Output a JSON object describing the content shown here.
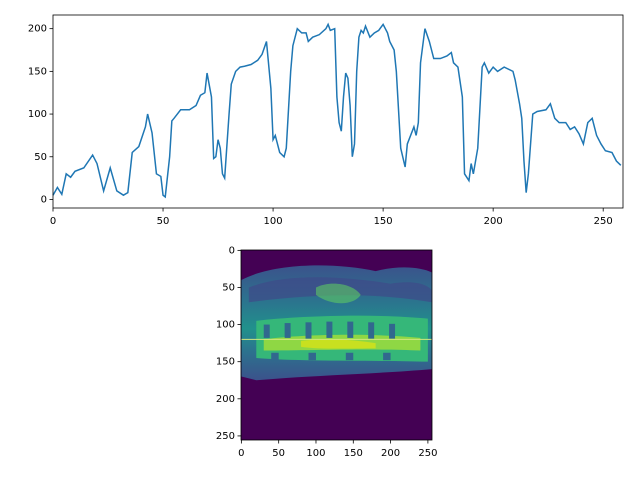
{
  "chart_data": [
    {
      "type": "line",
      "color": "#1f77b4",
      "x": [
        0,
        2,
        4,
        6,
        8,
        10,
        14,
        18,
        20,
        23,
        26,
        29,
        32,
        34,
        36,
        39,
        42,
        43,
        45,
        47,
        49,
        50,
        51,
        53,
        54,
        55,
        58,
        62,
        65,
        67,
        69,
        70,
        72,
        73,
        74,
        75,
        76,
        77,
        78,
        80,
        81,
        83,
        85,
        87,
        90,
        93,
        95,
        97,
        99,
        100,
        101,
        103,
        105,
        106,
        108,
        109,
        111,
        113,
        115,
        116,
        118,
        121,
        124,
        125,
        126,
        128,
        129,
        130,
        131,
        132,
        133,
        134,
        135,
        136,
        137,
        138,
        139,
        140,
        141,
        142,
        144,
        146,
        148,
        150,
        152,
        153,
        155,
        156,
        158,
        160,
        161,
        164,
        165,
        166,
        167,
        169,
        171,
        173,
        176,
        179,
        181,
        182,
        184,
        186,
        187,
        189,
        190,
        191,
        193,
        195,
        196,
        198,
        200,
        202,
        205,
        209,
        210,
        212,
        213,
        214,
        215,
        216,
        218,
        220,
        224,
        226,
        228,
        230,
        233,
        235,
        237,
        239,
        241,
        243,
        245,
        247,
        249,
        251,
        254,
        256,
        258
      ],
      "values": [
        5,
        14,
        6,
        30,
        26,
        33,
        37,
        52,
        42,
        10,
        37,
        10,
        5,
        8,
        55,
        62,
        85,
        100,
        78,
        30,
        27,
        5,
        3,
        50,
        92,
        95,
        105,
        105,
        110,
        122,
        125,
        148,
        120,
        48,
        50,
        70,
        60,
        30,
        25,
        100,
        135,
        150,
        155,
        156,
        158,
        163,
        170,
        185,
        130,
        70,
        75,
        55,
        50,
        60,
        150,
        180,
        200,
        195,
        195,
        185,
        190,
        193,
        200,
        205,
        198,
        200,
        120,
        90,
        80,
        120,
        148,
        142,
        110,
        50,
        65,
        150,
        190,
        198,
        195,
        203,
        190,
        195,
        198,
        205,
        195,
        185,
        175,
        150,
        60,
        38,
        65,
        85,
        75,
        90,
        160,
        200,
        185,
        165,
        165,
        168,
        172,
        160,
        155,
        120,
        30,
        22,
        42,
        30,
        60,
        155,
        160,
        148,
        155,
        150,
        155,
        150,
        140,
        112,
        95,
        45,
        8,
        30,
        100,
        103,
        105,
        112,
        95,
        90,
        90,
        82,
        85,
        77,
        65,
        90,
        95,
        75,
        65,
        57,
        55,
        45,
        40
      ],
      "xlim": [
        0,
        259
      ],
      "xticks": [
        0,
        50,
        100,
        150,
        200,
        250
      ],
      "ylim": [
        -10,
        216
      ],
      "yticks": [
        0,
        50,
        100,
        150,
        200
      ]
    },
    {
      "type": "image",
      "hline": 120,
      "hline_color": "#d2e67e",
      "xlim": [
        -0.5,
        255.5
      ],
      "xticks": [
        0,
        50,
        100,
        150,
        200,
        250
      ],
      "ylim": [
        255.5,
        -0.5
      ],
      "yticks": [
        0,
        50,
        100,
        150,
        200,
        250
      ]
    }
  ]
}
